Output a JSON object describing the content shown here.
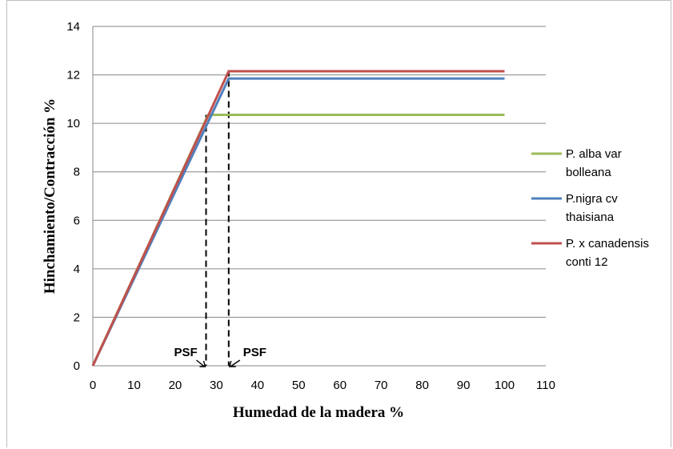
{
  "chart_data": {
    "type": "line",
    "xlabel": "Humedad de la madera %",
    "ylabel": "Hinchamiento/Contracción  %",
    "xlim": [
      0,
      110
    ],
    "ylim": [
      0,
      14
    ],
    "x_ticks": [
      0,
      10,
      20,
      30,
      40,
      50,
      60,
      70,
      80,
      90,
      100,
      110
    ],
    "y_ticks": [
      0,
      2,
      4,
      6,
      8,
      10,
      12,
      14
    ],
    "grid": "horizontal",
    "legend_position": "right",
    "series": [
      {
        "name": "P. alba var bolleana",
        "legend_lines": [
          "P. alba var",
          "bolleana"
        ],
        "color": "#9bbb59",
        "points": [
          [
            0,
            0
          ],
          [
            28,
            10.35
          ],
          [
            100,
            10.35
          ]
        ]
      },
      {
        "name": "P.nigra cv thaisiana",
        "legend_lines": [
          "P.nigra cv",
          "thaisiana"
        ],
        "color": "#4f81bd",
        "points": [
          [
            0,
            0
          ],
          [
            33,
            11.85
          ],
          [
            100,
            11.85
          ]
        ]
      },
      {
        "name": "P. x canadensis conti 12",
        "legend_lines": [
          "P. x canadensis",
          "conti 12"
        ],
        "color": "#c0504d",
        "points": [
          [
            0,
            0
          ],
          [
            33,
            12.15
          ],
          [
            100,
            12.15
          ]
        ]
      }
    ],
    "annotations": [
      {
        "text": "PSF",
        "x": 27.5,
        "y_top": 10.35
      },
      {
        "text": "PSF",
        "x": 33,
        "y_top": 12.2
      }
    ]
  }
}
